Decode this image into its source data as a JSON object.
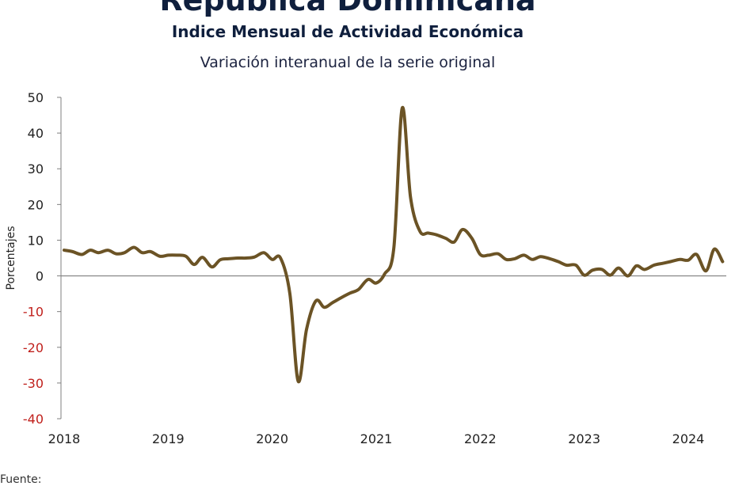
{
  "chart_data": {
    "type": "line",
    "title": "República Dominicana",
    "subtitle": "Indice Mensual de  Actividad Económica",
    "subtitle2": "Variación interanual de la serie original",
    "xlabel": "",
    "ylabel": "Porcentajes",
    "ylim": [
      -40,
      50
    ],
    "yticks": [
      50,
      40,
      30,
      20,
      10,
      0,
      -10,
      -20,
      -30,
      -40
    ],
    "xticks": [
      "2018",
      "2019",
      "2020",
      "2021",
      "2022",
      "2023",
      "2024"
    ],
    "grid": false,
    "legend": "none",
    "source_fragment": "Fuente:",
    "colors": {
      "line": "#6b5325",
      "negative_tick": "#c0201c",
      "axis": "#7f7f7f",
      "title": "#0f1f3d"
    },
    "series": [
      {
        "values": [
          [
            2018.0,
            7.2
          ],
          [
            2018.08,
            6.8
          ],
          [
            2018.17,
            6.0
          ],
          [
            2018.25,
            7.2
          ],
          [
            2018.33,
            6.5
          ],
          [
            2018.42,
            7.2
          ],
          [
            2018.5,
            6.2
          ],
          [
            2018.58,
            6.5
          ],
          [
            2018.67,
            8.0
          ],
          [
            2018.75,
            6.5
          ],
          [
            2018.83,
            6.8
          ],
          [
            2018.92,
            5.5
          ],
          [
            2019.0,
            5.8
          ],
          [
            2019.08,
            5.8
          ],
          [
            2019.17,
            5.5
          ],
          [
            2019.25,
            3.2
          ],
          [
            2019.33,
            5.2
          ],
          [
            2019.42,
            2.5
          ],
          [
            2019.5,
            4.5
          ],
          [
            2019.58,
            4.8
          ],
          [
            2019.67,
            5.0
          ],
          [
            2019.75,
            5.0
          ],
          [
            2019.83,
            5.3
          ],
          [
            2019.92,
            6.5
          ],
          [
            2020.0,
            4.6
          ],
          [
            2020.08,
            5.0
          ],
          [
            2020.17,
            -5.0
          ],
          [
            2020.25,
            -29.5
          ],
          [
            2020.33,
            -15.0
          ],
          [
            2020.42,
            -7.0
          ],
          [
            2020.5,
            -8.8
          ],
          [
            2020.58,
            -7.5
          ],
          [
            2020.67,
            -6.0
          ],
          [
            2020.75,
            -4.8
          ],
          [
            2020.83,
            -3.8
          ],
          [
            2020.92,
            -1.0
          ],
          [
            2021.0,
            -2.0
          ],
          [
            2021.08,
            0.5
          ],
          [
            2021.17,
            8.0
          ],
          [
            2021.25,
            47.0
          ],
          [
            2021.33,
            22.0
          ],
          [
            2021.42,
            12.5
          ],
          [
            2021.5,
            12.0
          ],
          [
            2021.58,
            11.5
          ],
          [
            2021.67,
            10.5
          ],
          [
            2021.75,
            9.5
          ],
          [
            2021.83,
            13.0
          ],
          [
            2021.92,
            10.5
          ],
          [
            2022.0,
            6.0
          ],
          [
            2022.08,
            5.8
          ],
          [
            2022.17,
            6.2
          ],
          [
            2022.25,
            4.6
          ],
          [
            2022.33,
            4.8
          ],
          [
            2022.42,
            5.8
          ],
          [
            2022.5,
            4.6
          ],
          [
            2022.58,
            5.4
          ],
          [
            2022.67,
            4.8
          ],
          [
            2022.75,
            4.0
          ],
          [
            2022.83,
            3.0
          ],
          [
            2022.92,
            3.0
          ],
          [
            2023.0,
            0.2
          ],
          [
            2023.08,
            1.6
          ],
          [
            2023.17,
            1.8
          ],
          [
            2023.25,
            0.2
          ],
          [
            2023.33,
            2.2
          ],
          [
            2023.42,
            0.0
          ],
          [
            2023.5,
            2.8
          ],
          [
            2023.58,
            1.8
          ],
          [
            2023.67,
            3.0
          ],
          [
            2023.75,
            3.5
          ],
          [
            2023.83,
            4.0
          ],
          [
            2023.92,
            4.6
          ],
          [
            2024.0,
            4.4
          ],
          [
            2024.08,
            6.0
          ],
          [
            2024.17,
            1.4
          ],
          [
            2024.25,
            7.5
          ],
          [
            2024.33,
            4.0
          ]
        ]
      }
    ]
  }
}
